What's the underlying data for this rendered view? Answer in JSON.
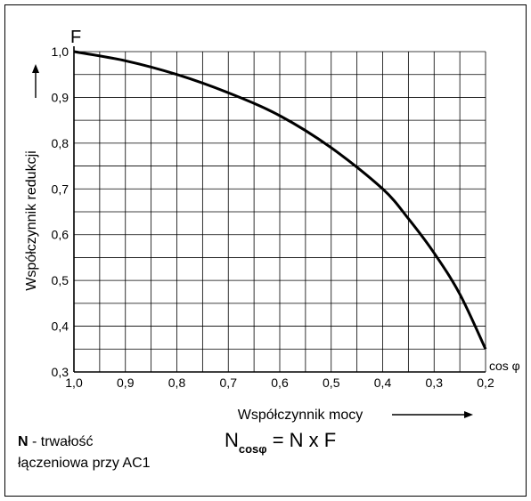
{
  "chart_data": {
    "type": "line",
    "title": "",
    "ylabel": "Współczynnik redukcji",
    "y_symbol": "F",
    "xlabel": "Współczynnik mocy",
    "x_symbol": "cos φ",
    "x_reversed": true,
    "xlim": [
      1.0,
      0.2
    ],
    "ylim": [
      0.3,
      1.0
    ],
    "x_ticks": [
      "1,0",
      "0,9",
      "0,8",
      "0,7",
      "0,6",
      "0,5",
      "0,4",
      "0,3",
      "0,2"
    ],
    "y_ticks": [
      "0,3",
      "0,4",
      "0,5",
      "0,6",
      "0,7",
      "0,8",
      "0,9",
      "1,0"
    ],
    "grid": true,
    "series": [
      {
        "x": [
          1.0,
          0.9,
          0.8,
          0.7,
          0.6,
          0.5,
          0.4,
          0.35,
          0.3,
          0.25,
          0.2
        ],
        "y": [
          1.0,
          0.98,
          0.95,
          0.91,
          0.86,
          0.79,
          0.7,
          0.635,
          0.56,
          0.47,
          0.35
        ]
      }
    ]
  },
  "legend": {
    "n_symbol": "N",
    "n_text_line1": " - trwałość",
    "n_text_line2": "łączeniowa przy AC1"
  },
  "formula": {
    "n": "N",
    "subscript": "cosφ",
    "rhs": "= N x F"
  }
}
